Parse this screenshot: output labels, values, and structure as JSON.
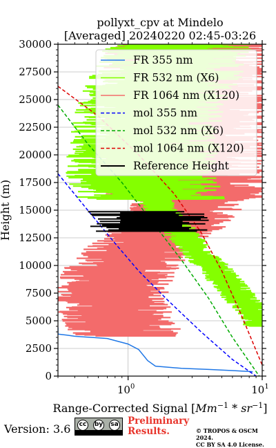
{
  "chart_data": {
    "type": "line",
    "title_lines": [
      "pollyxt_cpv at Mindelo",
      "[Averaged] 20240220 02:45-03:26"
    ],
    "xlabel": "Range-Corrected Signal [Mm^-1 * sr^-1]",
    "xlabel_parts": {
      "prefix": "Range-Corrected Signal [",
      "unit1": "Mm",
      "exp1": "−1",
      "mid": " * ",
      "unit2": "sr",
      "exp2": "−1",
      "suffix": "]"
    },
    "ylabel": "Height (m)",
    "x_scale": "log",
    "xlim": [
      0.3,
      10
    ],
    "ylim": [
      0,
      30000
    ],
    "x_ticks": [
      {
        "value": 1,
        "base": "10",
        "exp": "0"
      },
      {
        "value": 10,
        "base": "10",
        "exp": "1"
      }
    ],
    "y_ticks": [
      0,
      2500,
      5000,
      7500,
      10000,
      12500,
      15000,
      17500,
      20000,
      22500,
      25000,
      27500,
      30000
    ],
    "grid": true,
    "legend_position": "top-right",
    "series": [
      {
        "name": "FR 355 nm",
        "style": "solid",
        "color": "#1f77e6",
        "x": [
          0.3,
          0.3,
          0.35,
          0.4,
          0.7,
          1.0,
          1.2,
          1.4,
          1.6,
          2.5,
          4.0,
          6.0,
          8.5
        ],
        "y": [
          4400,
          3800,
          3700,
          3600,
          3400,
          2900,
          2400,
          1400,
          900,
          700,
          600,
          500,
          400
        ]
      },
      {
        "name": "FR 532 nm (X6)",
        "style": "noisy",
        "color": "#84ff00",
        "x": [
          2.5,
          2.0,
          1.6,
          1.4,
          1.3,
          1.4,
          1.8,
          2.5,
          3.2,
          4.2,
          5.5,
          7.0,
          8.5,
          9.5,
          10.0
        ],
        "y": [
          30000,
          27000,
          24000,
          21000,
          19000,
          17000,
          15000,
          13000,
          11500,
          10000,
          8500,
          7000,
          6000,
          5500,
          4500
        ]
      },
      {
        "name": "FR 1064 nm (X120)",
        "style": "noisy",
        "color": "#f36b6b",
        "x": [
          3.0,
          3.0,
          3.0,
          3.0,
          3.0,
          2.5,
          1.6,
          1.2,
          0.9,
          0.8,
          0.8,
          0.9,
          1.0,
          1.2
        ],
        "y": [
          30000,
          26000,
          22000,
          19000,
          16000,
          14000,
          12500,
          11000,
          9500,
          8000,
          6500,
          5000,
          4000,
          3600
        ]
      },
      {
        "name": "mol 355 nm",
        "style": "dashed",
        "color": "#0000ff",
        "x": [
          0.3,
          0.5,
          0.8,
          1.2,
          2.0,
          3.5,
          6.0,
          9.0
        ],
        "y": [
          18300,
          15000,
          12000,
          9500,
          6800,
          4000,
          1500,
          0
        ]
      },
      {
        "name": "mol 532 nm (X6)",
        "style": "dashed",
        "color": "#00aa00",
        "x": [
          0.3,
          0.5,
          0.9,
          1.5,
          2.5,
          4.0,
          6.0,
          9.5
        ],
        "y": [
          24500,
          21000,
          17500,
          14000,
          10500,
          7000,
          3500,
          0
        ]
      },
      {
        "name": "mol 1064 nm (X120)",
        "style": "dashed",
        "color": "#dd0000",
        "x": [
          0.3,
          0.6,
          1.2,
          2.2,
          3.5,
          5.0,
          7.0,
          10.0
        ],
        "y": [
          26200,
          23500,
          20000,
          16500,
          13000,
          9500,
          5500,
          1000
        ]
      },
      {
        "name": "Reference Height",
        "style": "band",
        "color": "#000000",
        "x": [
          0.5,
          4.0
        ],
        "y": [
          13100,
          14900
        ]
      }
    ]
  },
  "footer": {
    "version": "Version: 3.6",
    "license_badge": [
      "cc",
      "by",
      "sa"
    ],
    "license_badge_icons": [
      "cc-icon",
      "by-icon",
      "sa-icon"
    ],
    "preliminary_line1": "Preliminary",
    "preliminary_line2": "Results.",
    "copyright_line1": "© TROPOS & OSCM 2024.",
    "copyright_line2": "CC BY SA 4.0 License."
  }
}
